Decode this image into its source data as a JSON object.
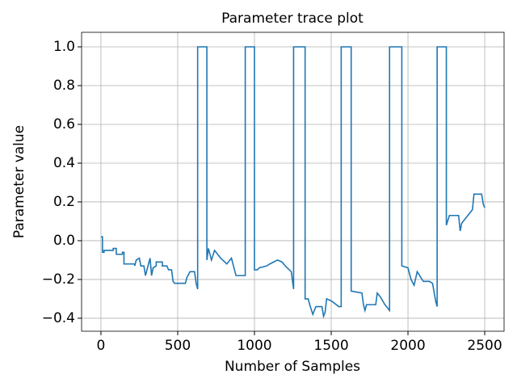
{
  "chart_data": {
    "type": "line",
    "title": "Parameter trace plot",
    "xlabel": "Number of Samples",
    "ylabel": "Parameter value",
    "color": "#1f77b4",
    "grid": true,
    "xlim": [
      -126,
      2626
    ],
    "ylim": [
      -0.467,
      1.075
    ],
    "xticks": [
      0,
      500,
      1000,
      1500,
      2000,
      2500
    ],
    "yticks": [
      {
        "value": -0.4,
        "label": "−0.4"
      },
      {
        "value": -0.2,
        "label": "−0.2"
      },
      {
        "value": 0,
        "label": "0.0"
      },
      0.2,
      0.4,
      0.6,
      0.8,
      {
        "value": 1,
        "label": "1.0"
      }
    ],
    "x": [
      0,
      10,
      10,
      20,
      20,
      80,
      80,
      100,
      100,
      140,
      140,
      150,
      150,
      220,
      220,
      230,
      250,
      260,
      280,
      290,
      310,
      320,
      330,
      340,
      360,
      360,
      400,
      400,
      430,
      440,
      460,
      470,
      480,
      550,
      560,
      580,
      610,
      620,
      630,
      630,
      690,
      690,
      700,
      720,
      740,
      780,
      820,
      850,
      870,
      880,
      940,
      940,
      1000,
      1000,
      1020,
      1030,
      1080,
      1100,
      1150,
      1180,
      1200,
      1240,
      1255,
      1255,
      1330,
      1330,
      1350,
      1360,
      1380,
      1400,
      1440,
      1450,
      1460,
      1470,
      1500,
      1550,
      1565,
      1565,
      1630,
      1630,
      1700,
      1710,
      1720,
      1730,
      1790,
      1800,
      1820,
      1850,
      1880,
      1880,
      1960,
      1960,
      2000,
      2020,
      2040,
      2060,
      2100,
      2140,
      2160,
      2180,
      2190,
      2190,
      2250,
      2250,
      2270,
      2330,
      2340,
      2350,
      2380,
      2420,
      2430,
      2480,
      2490,
      2500
    ],
    "values": [
      0.02,
      0.02,
      -0.06,
      -0.06,
      -0.05,
      -0.05,
      -0.04,
      -0.04,
      -0.07,
      -0.07,
      -0.06,
      -0.06,
      -0.12,
      -0.12,
      -0.13,
      -0.1,
      -0.09,
      -0.13,
      -0.13,
      -0.18,
      -0.12,
      -0.09,
      -0.18,
      -0.14,
      -0.13,
      -0.11,
      -0.11,
      -0.13,
      -0.13,
      -0.15,
      -0.15,
      -0.21,
      -0.22,
      -0.22,
      -0.19,
      -0.16,
      -0.16,
      -0.22,
      -0.25,
      1.0,
      1.0,
      -0.1,
      -0.04,
      -0.1,
      -0.05,
      -0.09,
      -0.12,
      -0.09,
      -0.15,
      -0.18,
      -0.18,
      1.0,
      1.0,
      -0.15,
      -0.15,
      -0.14,
      -0.13,
      -0.12,
      -0.1,
      -0.11,
      -0.13,
      -0.16,
      -0.25,
      1.0,
      1.0,
      -0.3,
      -0.3,
      -0.33,
      -0.38,
      -0.34,
      -0.34,
      -0.39,
      -0.37,
      -0.3,
      -0.31,
      -0.34,
      -0.34,
      1.0,
      1.0,
      -0.26,
      -0.27,
      -0.33,
      -0.36,
      -0.33,
      -0.33,
      -0.27,
      -0.29,
      -0.33,
      -0.36,
      1.0,
      1.0,
      -0.13,
      -0.14,
      -0.2,
      -0.23,
      -0.16,
      -0.21,
      -0.21,
      -0.22,
      -0.31,
      -0.34,
      1.0,
      1.0,
      0.08,
      0.13,
      0.13,
      0.05,
      0.09,
      0.12,
      0.16,
      0.24,
      0.24,
      0.19,
      0.17
    ]
  }
}
